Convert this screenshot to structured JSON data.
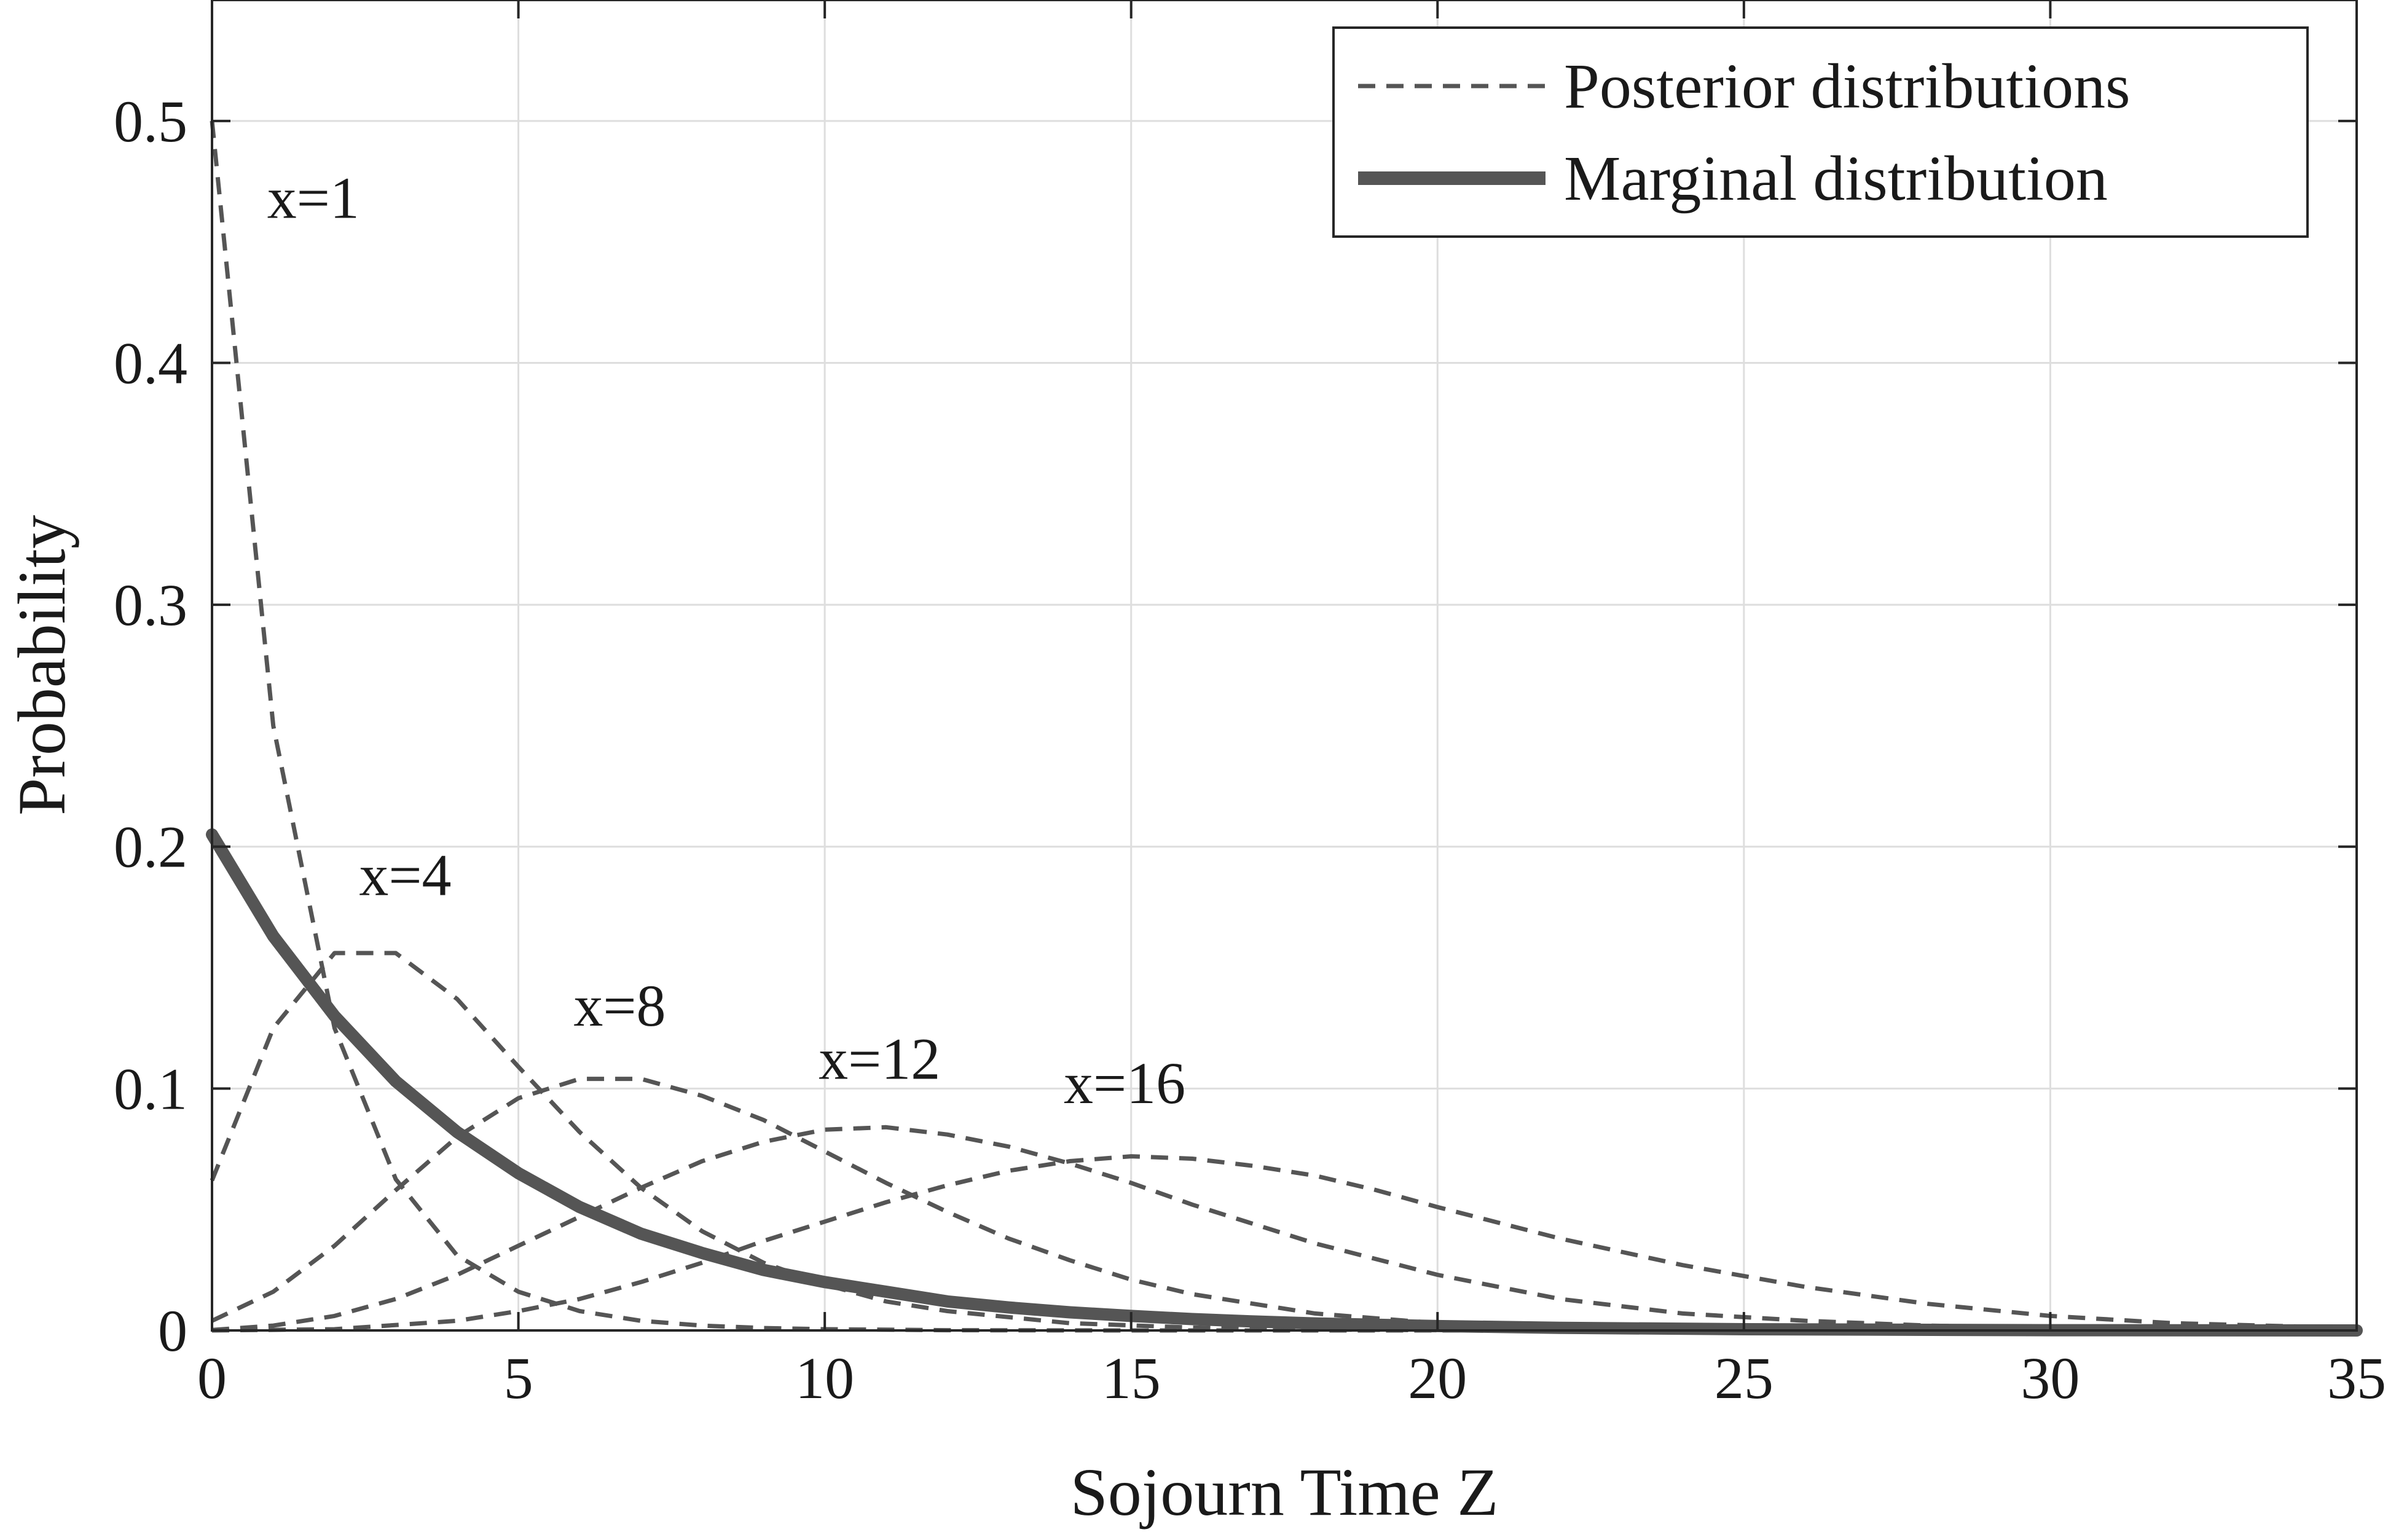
{
  "chart_data": {
    "type": "line",
    "xlabel": "Sojourn Time Z",
    "ylabel": "Probability",
    "xlim": [
      0,
      35
    ],
    "ylim": [
      0,
      0.55
    ],
    "xticks": [
      0,
      5,
      10,
      15,
      20,
      25,
      30,
      35
    ],
    "xtick_labels": [
      "0",
      "5",
      "10",
      "15",
      "20",
      "25",
      "30",
      "35"
    ],
    "yticks": [
      0,
      0.1,
      0.2,
      0.3,
      0.4,
      0.5
    ],
    "ytick_labels": [
      "0",
      "0.1",
      "0.2",
      "0.3",
      "0.4",
      "0.5"
    ],
    "grid": true,
    "legend_position": "top-right",
    "legend": [
      {
        "label": "Posterior distributions",
        "style": "dashed"
      },
      {
        "label": "Marginal distribution",
        "style": "solid-thick"
      }
    ],
    "annotations": [
      {
        "text": "x=1",
        "x": 0.9,
        "y": 0.46
      },
      {
        "text": "x=4",
        "x": 2.4,
        "y": 0.18
      },
      {
        "text": "x=8",
        "x": 5.9,
        "y": 0.126
      },
      {
        "text": "x=12",
        "x": 9.9,
        "y": 0.104
      },
      {
        "text": "x=16",
        "x": 13.9,
        "y": 0.094
      }
    ],
    "series": [
      {
        "style": "dashed",
        "x": [
          0,
          1,
          2,
          3,
          4,
          5,
          6,
          7,
          8,
          9,
          10,
          12,
          15,
          20,
          25,
          30,
          35
        ],
        "values": [
          0.5,
          0.25,
          0.125,
          0.0625,
          0.031,
          0.016,
          0.008,
          0.004,
          0.002,
          0.001,
          0.0005,
          0.0001,
          0,
          0,
          0,
          0,
          0
        ]
      },
      {
        "style": "dashed",
        "x": [
          0,
          1,
          2,
          3,
          4,
          5,
          6,
          7,
          8,
          9,
          10,
          11,
          12,
          14,
          16,
          18,
          20,
          25,
          30,
          35
        ],
        "values": [
          0.062,
          0.125,
          0.156,
          0.156,
          0.137,
          0.109,
          0.082,
          0.059,
          0.041,
          0.028,
          0.019,
          0.012,
          0.008,
          0.003,
          0.0012,
          0.0004,
          0.0001,
          0,
          0,
          0
        ]
      },
      {
        "style": "dashed",
        "x": [
          0,
          1,
          2,
          3,
          4,
          5,
          6,
          7,
          8,
          9,
          10,
          11,
          12,
          13,
          14,
          15,
          16,
          18,
          20,
          22,
          25,
          30,
          35
        ],
        "values": [
          0.004,
          0.016,
          0.035,
          0.058,
          0.08,
          0.096,
          0.104,
          0.104,
          0.097,
          0.087,
          0.074,
          0.061,
          0.049,
          0.038,
          0.029,
          0.021,
          0.015,
          0.007,
          0.003,
          0.0013,
          0.0003,
          0,
          0
        ]
      },
      {
        "style": "dashed",
        "x": [
          0,
          1,
          2,
          3,
          4,
          5,
          6,
          7,
          8,
          9,
          10,
          11,
          12,
          13,
          14,
          15,
          16,
          17,
          18,
          20,
          22,
          24,
          26,
          28,
          30,
          35
        ],
        "values": [
          0.0002,
          0.002,
          0.006,
          0.013,
          0.023,
          0.035,
          0.047,
          0.059,
          0.07,
          0.078,
          0.083,
          0.084,
          0.081,
          0.076,
          0.069,
          0.061,
          0.052,
          0.044,
          0.036,
          0.023,
          0.013,
          0.007,
          0.004,
          0.002,
          0.001,
          0.0001
        ]
      },
      {
        "style": "dashed",
        "x": [
          0,
          2,
          4,
          5,
          6,
          7,
          8,
          9,
          10,
          11,
          12,
          13,
          14,
          15,
          16,
          17,
          18,
          19,
          20,
          22,
          24,
          26,
          28,
          30,
          32,
          35
        ],
        "values": [
          0,
          0.0005,
          0.004,
          0.008,
          0.013,
          0.02,
          0.028,
          0.037,
          0.045,
          0.053,
          0.06,
          0.066,
          0.07,
          0.072,
          0.071,
          0.068,
          0.064,
          0.058,
          0.051,
          0.038,
          0.027,
          0.018,
          0.011,
          0.006,
          0.003,
          0.001
        ]
      },
      {
        "style": "solid-thick",
        "x": [
          0,
          1,
          2,
          3,
          4,
          5,
          6,
          7,
          8,
          9,
          10,
          11,
          12,
          13,
          14,
          15,
          16,
          17,
          18,
          20,
          22,
          25,
          30,
          35
        ],
        "values": [
          0.205,
          0.163,
          0.13,
          0.103,
          0.082,
          0.065,
          0.051,
          0.04,
          0.032,
          0.025,
          0.02,
          0.016,
          0.012,
          0.0095,
          0.0075,
          0.006,
          0.0047,
          0.0037,
          0.0029,
          0.0018,
          0.0011,
          0.0005,
          0.0001,
          0
        ]
      }
    ]
  }
}
